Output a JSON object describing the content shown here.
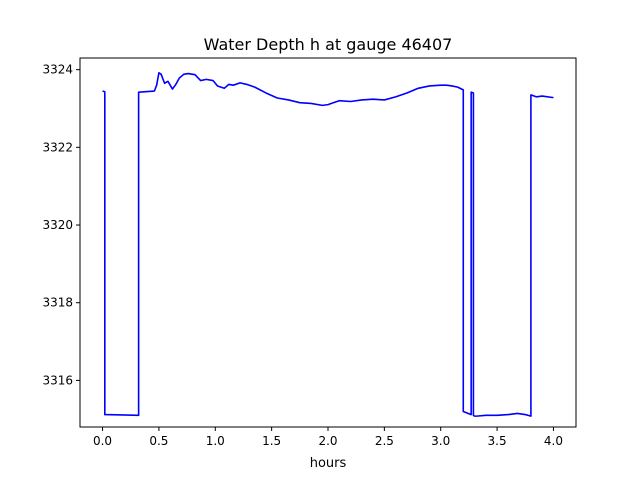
{
  "chart_data": {
    "type": "line",
    "title": "Water Depth h at gauge 46407",
    "xlabel": "hours",
    "ylabel": "",
    "xlim": [
      -0.2,
      4.2
    ],
    "ylim": [
      3314.8,
      3324.3
    ],
    "xticks": [
      0.0,
      0.5,
      1.0,
      1.5,
      2.0,
      2.5,
      3.0,
      3.5,
      4.0
    ],
    "xtick_labels": [
      "0.0",
      "0.5",
      "1.0",
      "1.5",
      "2.0",
      "2.5",
      "3.0",
      "3.5",
      "4.0"
    ],
    "yticks": [
      3316,
      3318,
      3320,
      3322,
      3324
    ],
    "ytick_labels": [
      "3316",
      "3318",
      "3320",
      "3322",
      "3324"
    ],
    "grid": false,
    "series": [
      {
        "color": "#0000ff",
        "x": [
          0.0,
          0.02,
          0.02,
          0.32,
          0.32,
          0.46,
          0.48,
          0.5,
          0.52,
          0.55,
          0.58,
          0.62,
          0.65,
          0.68,
          0.72,
          0.76,
          0.82,
          0.87,
          0.92,
          0.98,
          1.02,
          1.08,
          1.12,
          1.16,
          1.22,
          1.28,
          1.35,
          1.45,
          1.55,
          1.65,
          1.75,
          1.85,
          1.95,
          2.0,
          2.05,
          2.1,
          2.2,
          2.3,
          2.4,
          2.5,
          2.6,
          2.7,
          2.8,
          2.9,
          3.0,
          3.05,
          3.1,
          3.15,
          3.2,
          3.2,
          3.27,
          3.27,
          3.29,
          3.29,
          3.3,
          3.32,
          3.4,
          3.5,
          3.6,
          3.68,
          3.75,
          3.8,
          3.8,
          3.85,
          3.9,
          4.0
        ],
        "y": [
          3323.45,
          3323.43,
          3315.12,
          3315.1,
          3323.42,
          3323.45,
          3323.6,
          3323.92,
          3323.88,
          3323.65,
          3323.7,
          3323.5,
          3323.62,
          3323.78,
          3323.88,
          3323.9,
          3323.87,
          3323.72,
          3323.75,
          3323.72,
          3323.58,
          3323.52,
          3323.62,
          3323.6,
          3323.66,
          3323.62,
          3323.55,
          3323.4,
          3323.27,
          3323.22,
          3323.15,
          3323.13,
          3323.08,
          3323.1,
          3323.15,
          3323.2,
          3323.18,
          3323.22,
          3323.24,
          3323.22,
          3323.3,
          3323.4,
          3323.52,
          3323.58,
          3323.6,
          3323.6,
          3323.58,
          3323.55,
          3323.48,
          3315.2,
          3315.12,
          3323.42,
          3323.4,
          3315.1,
          3315.08,
          3315.08,
          3315.1,
          3315.1,
          3315.12,
          3315.15,
          3315.12,
          3315.08,
          3323.35,
          3323.3,
          3323.32,
          3323.28
        ]
      }
    ]
  }
}
